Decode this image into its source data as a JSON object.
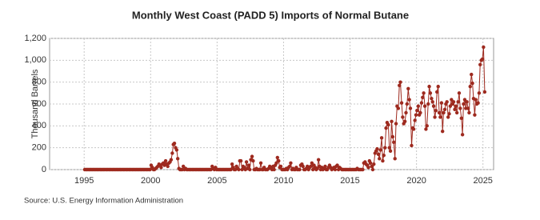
{
  "chart_data": {
    "type": "line",
    "title": "Monthly West Coast (PADD 5) Imports of Normal Butane",
    "y_label": "Thousand Barrels",
    "source": "Source: U.S. Energy Information Administration",
    "grid": true,
    "xlim": [
      1992.4,
      2025.8
    ],
    "xticks": [
      1995,
      2000,
      2005,
      2010,
      2015,
      2020,
      2025
    ],
    "ylim": [
      0,
      1200
    ],
    "yticks": [
      0,
      200,
      400,
      600,
      800,
      {
        "value": 1000,
        "label": "1,000"
      },
      {
        "value": 1200,
        "label": "1,200"
      }
    ],
    "x": [
      1995.04,
      1995.13,
      1995.21,
      1995.29,
      1995.38,
      1995.46,
      1995.54,
      1995.63,
      1995.71,
      1995.79,
      1995.88,
      1995.96,
      1996.04,
      1996.13,
      1996.21,
      1996.29,
      1996.38,
      1996.46,
      1996.54,
      1996.63,
      1996.71,
      1996.79,
      1996.88,
      1996.96,
      1997.04,
      1997.13,
      1997.21,
      1997.29,
      1997.38,
      1997.46,
      1997.54,
      1997.63,
      1997.71,
      1997.79,
      1997.88,
      1997.96,
      1998.04,
      1998.13,
      1998.21,
      1998.29,
      1998.38,
      1998.46,
      1998.54,
      1998.63,
      1998.71,
      1998.79,
      1998.88,
      1998.96,
      1999.04,
      1999.13,
      1999.21,
      1999.29,
      1999.38,
      1999.46,
      1999.54,
      1999.63,
      1999.71,
      1999.79,
      1999.88,
      1999.96,
      2000.04,
      2000.13,
      2000.21,
      2000.29,
      2000.38,
      2000.46,
      2000.54,
      2000.63,
      2000.71,
      2000.79,
      2000.88,
      2000.96,
      2001.04,
      2001.13,
      2001.21,
      2001.29,
      2001.38,
      2001.46,
      2001.54,
      2001.63,
      2001.71,
      2001.79,
      2001.88,
      2001.96,
      2002.04,
      2002.13,
      2002.21,
      2002.29,
      2002.38,
      2002.46,
      2002.54,
      2002.63,
      2002.71,
      2002.79,
      2002.88,
      2002.96,
      2003.04,
      2003.13,
      2003.21,
      2003.29,
      2003.38,
      2003.46,
      2003.54,
      2003.63,
      2003.71,
      2003.79,
      2003.88,
      2003.96,
      2004.04,
      2004.13,
      2004.21,
      2004.29,
      2004.38,
      2004.46,
      2004.54,
      2004.63,
      2004.71,
      2004.79,
      2004.88,
      2004.96,
      2005.04,
      2005.13,
      2005.21,
      2005.29,
      2005.38,
      2005.46,
      2005.54,
      2005.63,
      2005.71,
      2005.79,
      2005.88,
      2005.96,
      2006.04,
      2006.13,
      2006.21,
      2006.29,
      2006.38,
      2006.46,
      2006.54,
      2006.63,
      2006.71,
      2006.79,
      2006.88,
      2006.96,
      2007.04,
      2007.13,
      2007.21,
      2007.29,
      2007.38,
      2007.46,
      2007.54,
      2007.63,
      2007.71,
      2007.79,
      2007.88,
      2007.96,
      2008.04,
      2008.13,
      2008.21,
      2008.29,
      2008.38,
      2008.46,
      2008.54,
      2008.63,
      2008.71,
      2008.79,
      2008.88,
      2008.96,
      2009.04,
      2009.13,
      2009.21,
      2009.29,
      2009.38,
      2009.46,
      2009.54,
      2009.63,
      2009.71,
      2009.79,
      2009.88,
      2009.96,
      2010.04,
      2010.13,
      2010.21,
      2010.29,
      2010.38,
      2010.46,
      2010.54,
      2010.63,
      2010.71,
      2010.79,
      2010.88,
      2010.96,
      2011.04,
      2011.13,
      2011.21,
      2011.29,
      2011.38,
      2011.46,
      2011.54,
      2011.63,
      2011.71,
      2011.79,
      2011.88,
      2011.96,
      2012.04,
      2012.13,
      2012.21,
      2012.29,
      2012.38,
      2012.46,
      2012.54,
      2012.63,
      2012.71,
      2012.79,
      2012.88,
      2012.96,
      2013.04,
      2013.13,
      2013.21,
      2013.29,
      2013.38,
      2013.46,
      2013.54,
      2013.63,
      2013.71,
      2013.79,
      2013.88,
      2013.96,
      2014.04,
      2014.13,
      2014.21,
      2014.29,
      2014.38,
      2014.46,
      2014.54,
      2014.63,
      2014.71,
      2014.79,
      2014.88,
      2014.96,
      2015.04,
      2015.13,
      2015.21,
      2015.29,
      2015.38,
      2015.46,
      2015.54,
      2015.63,
      2015.71,
      2015.79,
      2015.88,
      2015.96,
      2016.04,
      2016.13,
      2016.21,
      2016.29,
      2016.38,
      2016.46,
      2016.54,
      2016.63,
      2016.71,
      2016.79,
      2016.88,
      2016.96,
      2017.04,
      2017.13,
      2017.21,
      2017.29,
      2017.38,
      2017.46,
      2017.54,
      2017.63,
      2017.71,
      2017.79,
      2017.88,
      2017.96,
      2018.04,
      2018.13,
      2018.21,
      2018.29,
      2018.38,
      2018.46,
      2018.54,
      2018.63,
      2018.71,
      2018.79,
      2018.88,
      2018.96,
      2019.04,
      2019.13,
      2019.21,
      2019.29,
      2019.38,
      2019.46,
      2019.54,
      2019.63,
      2019.71,
      2019.79,
      2019.88,
      2019.96,
      2020.04,
      2020.13,
      2020.21,
      2020.29,
      2020.38,
      2020.46,
      2020.54,
      2020.63,
      2020.71,
      2020.79,
      2020.88,
      2020.96,
      2021.04,
      2021.13,
      2021.21,
      2021.29,
      2021.38,
      2021.46,
      2021.54,
      2021.63,
      2021.71,
      2021.79,
      2021.88,
      2021.96,
      2022.04,
      2022.13,
      2022.21,
      2022.29,
      2022.38,
      2022.46,
      2022.54,
      2022.63,
      2022.71,
      2022.79,
      2022.88,
      2022.96,
      2023.04,
      2023.13,
      2023.21,
      2023.29,
      2023.38,
      2023.46,
      2023.54,
      2023.63,
      2023.71,
      2023.79,
      2023.88,
      2023.96,
      2024.04,
      2024.13,
      2024.21,
      2024.29,
      2024.38,
      2024.46,
      2024.54,
      2024.63,
      2024.71,
      2024.79,
      2024.88,
      2024.96,
      2025.04,
      2025.13
    ],
    "series": [
      {
        "color": "#9e2a1f",
        "values": [
          0,
          0,
          0,
          0,
          0,
          0,
          0,
          0,
          0,
          0,
          0,
          0,
          0,
          0,
          0,
          0,
          0,
          0,
          0,
          0,
          0,
          0,
          0,
          0,
          0,
          0,
          0,
          0,
          0,
          0,
          0,
          0,
          0,
          0,
          0,
          0,
          0,
          0,
          0,
          0,
          0,
          0,
          0,
          0,
          0,
          0,
          0,
          0,
          0,
          0,
          0,
          0,
          0,
          0,
          0,
          0,
          0,
          0,
          0,
          0,
          40,
          20,
          0,
          0,
          10,
          20,
          30,
          50,
          40,
          20,
          50,
          60,
          40,
          80,
          50,
          30,
          60,
          70,
          90,
          150,
          230,
          240,
          200,
          180,
          100,
          10,
          0,
          0,
          0,
          30,
          0,
          10,
          0,
          0,
          0,
          0,
          0,
          0,
          0,
          0,
          0,
          0,
          0,
          0,
          0,
          0,
          0,
          0,
          0,
          0,
          0,
          0,
          0,
          0,
          0,
          30,
          10,
          0,
          20,
          0,
          0,
          0,
          0,
          0,
          0,
          0,
          0,
          0,
          0,
          0,
          0,
          0,
          0,
          50,
          20,
          0,
          0,
          30,
          10,
          0,
          80,
          80,
          0,
          30,
          20,
          0,
          70,
          10,
          40,
          0,
          90,
          120,
          80,
          0,
          0,
          10,
          0,
          0,
          0,
          60,
          0,
          0,
          20,
          0,
          0,
          0,
          10,
          30,
          20,
          0,
          30,
          0,
          40,
          60,
          110,
          80,
          20,
          30,
          0,
          0,
          0,
          0,
          10,
          0,
          20,
          30,
          60,
          0,
          10,
          0,
          0,
          20,
          0,
          0,
          0,
          40,
          50,
          30,
          0,
          0,
          10,
          30,
          0,
          20,
          30,
          60,
          0,
          40,
          20,
          0,
          10,
          90,
          30,
          0,
          20,
          0,
          10,
          30,
          0,
          0,
          20,
          40,
          20,
          0,
          10,
          20,
          0,
          30,
          40,
          0,
          20,
          10,
          0,
          0,
          0,
          0,
          0,
          0,
          0,
          0,
          0,
          0,
          0,
          0,
          0,
          0,
          10,
          0,
          0,
          0,
          0,
          0,
          60,
          70,
          50,
          40,
          20,
          80,
          60,
          30,
          0,
          50,
          150,
          170,
          190,
          140,
          100,
          180,
          290,
          80,
          130,
          200,
          380,
          430,
          410,
          200,
          170,
          440,
          300,
          250,
          100,
          420,
          580,
          560,
          770,
          800,
          610,
          480,
          420,
          440,
          520,
          600,
          740,
          640,
          560,
          220,
          380,
          370,
          450,
          500,
          540,
          580,
          500,
          520,
          610,
          660,
          700,
          580,
          370,
          400,
          600,
          760,
          700,
          650,
          620,
          580,
          480,
          540,
          710,
          760,
          520,
          480,
          610,
          350,
          520,
          550,
          600,
          620,
          480,
          510,
          580,
          640,
          600,
          620,
          550,
          580,
          520,
          620,
          700,
          560,
          470,
          320,
          600,
          640,
          560,
          620,
          560,
          520,
          760,
          870,
          790,
          650,
          500,
          640,
          600,
          610,
          700,
          960,
          1000,
          1010,
          1120,
          710
        ]
      }
    ]
  }
}
